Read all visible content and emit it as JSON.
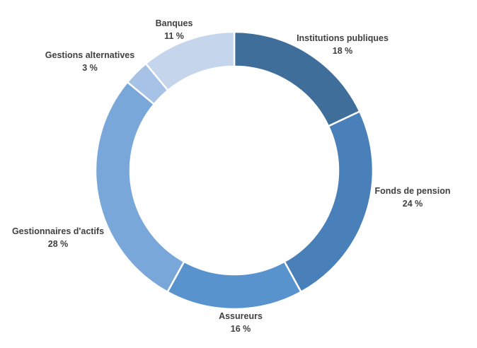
{
  "chart_data": {
    "type": "pie",
    "variant": "donut",
    "title": "",
    "slices": [
      {
        "label": "Institutions publiques",
        "value": 18,
        "value_label": "18 %",
        "color": "#3f6e9b"
      },
      {
        "label": "Fonds de pension",
        "value": 24,
        "value_label": "24 %",
        "color": "#4a80b9"
      },
      {
        "label": "Assureurs",
        "value": 16,
        "value_label": "16 %",
        "color": "#5993cd"
      },
      {
        "label": "Gestionnaires d'actifs",
        "value": 28,
        "value_label": "28 %",
        "color": "#79a7da"
      },
      {
        "label": "Gestions alternatives",
        "value": 3,
        "value_label": "3 %",
        "color": "#a6c2e6"
      },
      {
        "label": "Banques",
        "value": 11,
        "value_label": "11 %",
        "color": "#c5d6ec"
      }
    ]
  }
}
